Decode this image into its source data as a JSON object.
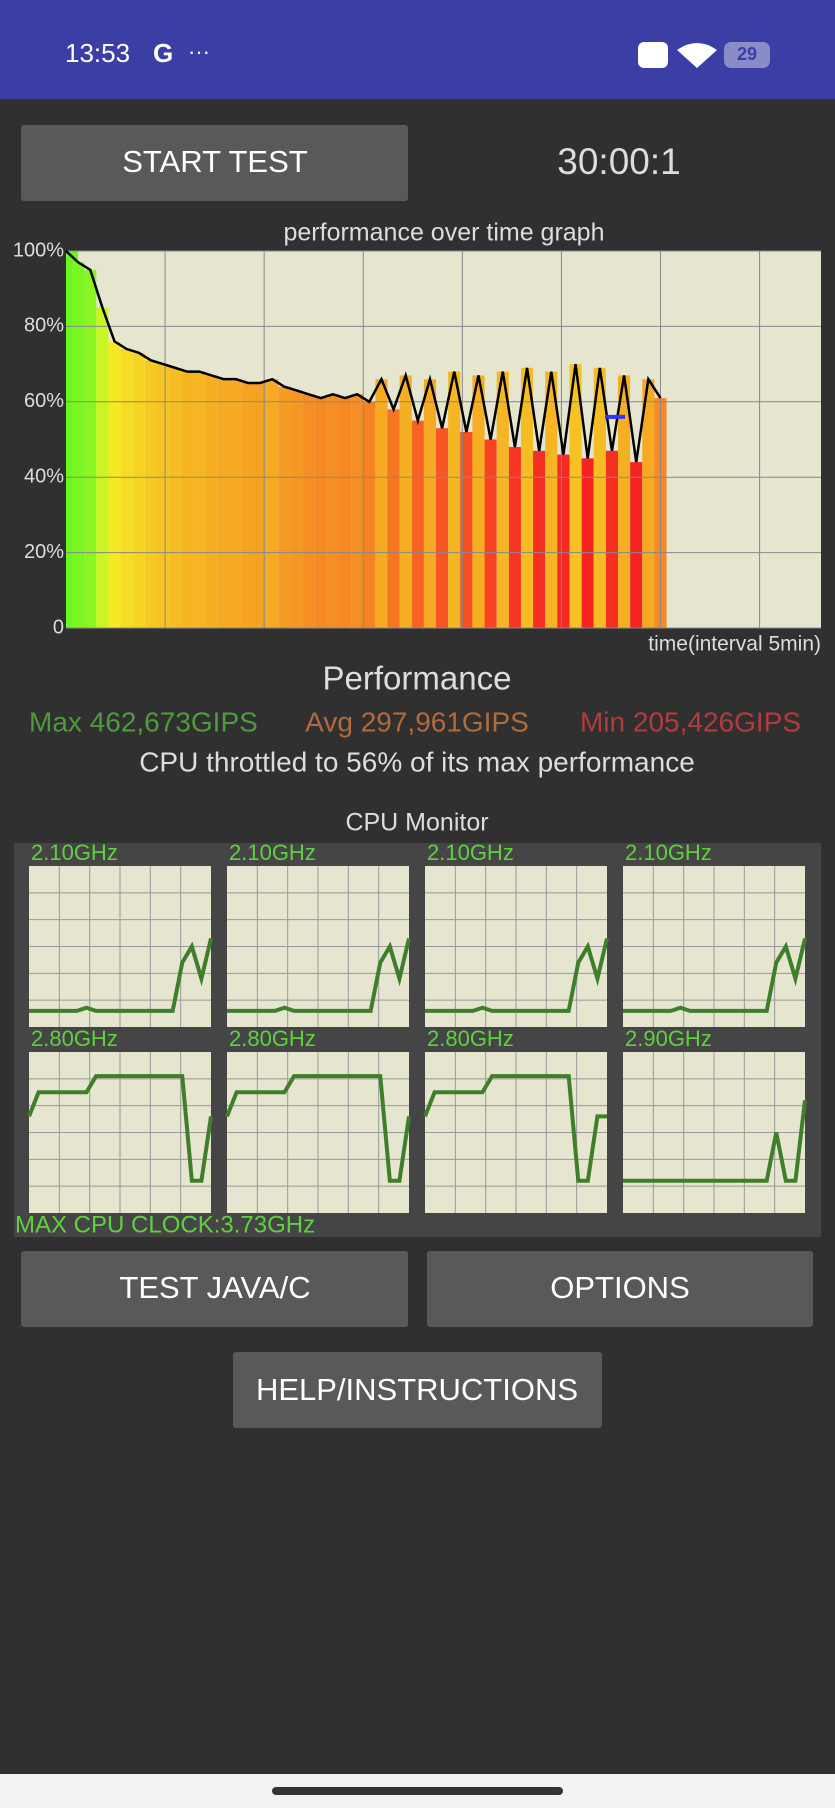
{
  "status_bar": {
    "time": "13:53",
    "carrier": "G",
    "more": "···",
    "battery": "29"
  },
  "start_button": "START TEST",
  "timer": "30:00:1",
  "perf_graph": {
    "title": "performance over time graph",
    "xlabel": "time(interval 5min)",
    "ylim": [
      0,
      100
    ],
    "yticks": [
      {
        "value": 100,
        "label": "100%"
      },
      {
        "value": 80,
        "label": "80%"
      },
      {
        "value": 60,
        "label": "60%"
      },
      {
        "value": 40,
        "label": "40%"
      },
      {
        "value": 20,
        "label": "20%"
      },
      0
    ],
    "values": [
      100,
      97,
      95,
      85,
      76,
      74,
      73,
      71,
      70,
      69,
      68,
      68,
      67,
      66,
      66,
      65,
      65,
      66,
      64,
      63,
      62,
      61,
      62,
      61,
      62,
      60,
      66,
      58,
      67,
      55,
      66,
      53,
      68,
      52,
      67,
      50,
      68,
      48,
      69,
      47,
      68,
      46,
      70,
      45,
      69,
      47,
      67,
      44,
      66,
      61
    ],
    "marker": 56
  },
  "performance": {
    "title": "Performance",
    "max": "Max 462,673GIPS",
    "avg": "Avg 297,961GIPS",
    "min": "Min 205,426GIPS",
    "throttled": "CPU throttled to 56% of its max performance"
  },
  "cpu_monitor": {
    "title": "CPU Monitor",
    "ylim": [
      0,
      100
    ],
    "cores": [
      {
        "label": "2.10GHz",
        "values": [
          10,
          10,
          10,
          10,
          10,
          10,
          12,
          10,
          10,
          10,
          10,
          10,
          10,
          10,
          10,
          10,
          40,
          50,
          30,
          55
        ]
      },
      {
        "label": "2.10GHz",
        "values": [
          10,
          10,
          10,
          10,
          10,
          10,
          12,
          10,
          10,
          10,
          10,
          10,
          10,
          10,
          10,
          10,
          40,
          50,
          30,
          55
        ]
      },
      {
        "label": "2.10GHz",
        "values": [
          10,
          10,
          10,
          10,
          10,
          10,
          12,
          10,
          10,
          10,
          10,
          10,
          10,
          10,
          10,
          10,
          40,
          50,
          30,
          55
        ]
      },
      {
        "label": "2.10GHz",
        "values": [
          10,
          10,
          10,
          10,
          10,
          10,
          12,
          10,
          10,
          10,
          10,
          10,
          10,
          10,
          10,
          10,
          40,
          50,
          30,
          55
        ]
      },
      {
        "label": "2.80GHz",
        "values": [
          60,
          75,
          75,
          75,
          75,
          75,
          75,
          85,
          85,
          85,
          85,
          85,
          85,
          85,
          85,
          85,
          85,
          20,
          20,
          60
        ]
      },
      {
        "label": "2.80GHz",
        "values": [
          60,
          75,
          75,
          75,
          75,
          75,
          75,
          85,
          85,
          85,
          85,
          85,
          85,
          85,
          85,
          85,
          85,
          20,
          20,
          60
        ]
      },
      {
        "label": "2.80GHz",
        "values": [
          60,
          75,
          75,
          75,
          75,
          75,
          75,
          85,
          85,
          85,
          85,
          85,
          85,
          85,
          85,
          85,
          20,
          20,
          60,
          60
        ]
      },
      {
        "label": "2.90GHz",
        "values": [
          20,
          20,
          20,
          20,
          20,
          20,
          20,
          20,
          20,
          20,
          20,
          20,
          20,
          20,
          20,
          20,
          50,
          20,
          20,
          70
        ]
      }
    ],
    "max_clock": "MAX CPU CLOCK:3.73GHz"
  },
  "buttons": {
    "test": "TEST JAVA/C",
    "options": "OPTIONS",
    "help": "HELP/INSTRUCTIONS"
  }
}
